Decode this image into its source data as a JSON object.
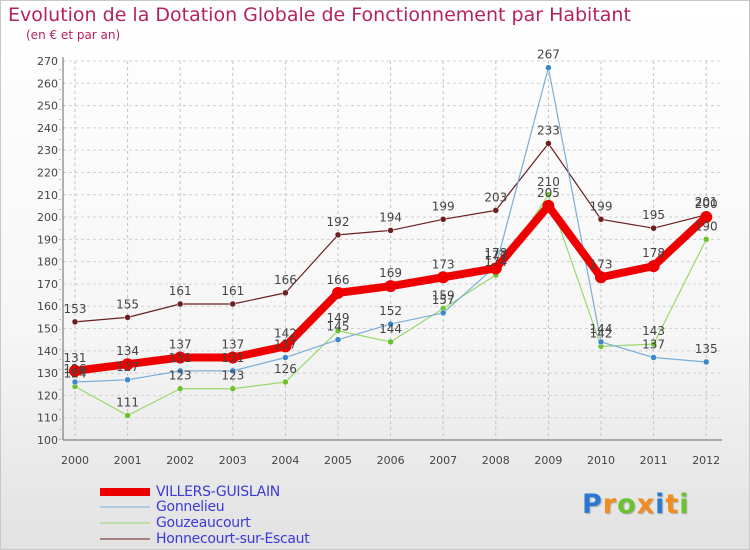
{
  "title": "Evolution de la Dotation Globale de Fonctionnement par Habitant",
  "subtitle": "(en € et par an)",
  "logo": {
    "letters": [
      "P",
      "r",
      "o",
      "x",
      "i",
      "t",
      "i"
    ],
    "colors": [
      "#2b78d2",
      "#f28c1e",
      "#6cc12e",
      "#f28c1e",
      "#2b78d2",
      "#f28c1e",
      "#6cc12e"
    ]
  },
  "chart_data": {
    "type": "line",
    "title": "Evolution de la Dotation Globale de Fonctionnement par Habitant",
    "subtitle": "(en € et par an)",
    "xlabel": "",
    "ylabel": "",
    "ylim": [
      100,
      270
    ],
    "yticks": [
      100,
      110,
      120,
      130,
      140,
      150,
      160,
      170,
      180,
      190,
      200,
      210,
      220,
      230,
      240,
      250,
      260,
      270
    ],
    "categories": [
      "2000",
      "2001",
      "2002",
      "2003",
      "2004",
      "2005",
      "2006",
      "2007",
      "2008",
      "2009",
      "2010",
      "2011",
      "2012"
    ],
    "legend_position": "bottom-left",
    "series": [
      {
        "name": "Honnecourt-sur-Escaut",
        "color": "#6b1f1f",
        "marker": "#6b1f1f",
        "width": 1.2,
        "radius": 3,
        "values": [
          153,
          155,
          161,
          161,
          166,
          192,
          194,
          199,
          203,
          233,
          199,
          195,
          201
        ],
        "labels": [
          "153",
          "155",
          "161",
          "161",
          "166",
          "192",
          "194",
          "199",
          "203",
          "233",
          "199",
          "195",
          "201"
        ]
      },
      {
        "name": "Gouzeaucourt",
        "color": "#98d86a",
        "marker": "#6cc12e",
        "width": 1.2,
        "radius": 3,
        "values": [
          124,
          111,
          123,
          123,
          126,
          149,
          144,
          159,
          174,
          210,
          142,
          143,
          190
        ],
        "labels": [
          "124",
          "111",
          "123",
          "123",
          "126",
          "149",
          "144",
          "159",
          "174",
          "210",
          "142",
          "143",
          "190"
        ]
      },
      {
        "name": "Gonnelieu",
        "color": "#7aaed8",
        "marker": "#3f88c8",
        "width": 1.2,
        "radius": 3,
        "values": [
          126,
          127,
          131,
          131,
          137,
          145,
          152,
          157,
          178,
          267,
          144,
          137,
          135
        ],
        "labels": [
          "126",
          "127",
          "131",
          "131",
          "137",
          "145",
          "152",
          "157",
          "178",
          "267",
          "144",
          "137",
          "135"
        ]
      },
      {
        "name": "VILLERS-GUISLAIN",
        "color": "#ee0000",
        "marker": "#ee0000",
        "width": 8,
        "radius": 6,
        "values": [
          131,
          134,
          137,
          137,
          142,
          166,
          169,
          173,
          177,
          205,
          173,
          178,
          200
        ],
        "labels": [
          "131",
          "134",
          "137",
          "137",
          "142",
          "166",
          "169",
          "173",
          "177",
          "205",
          "173",
          "178",
          "200"
        ]
      }
    ],
    "legend": [
      "VILLERS-GUISLAIN",
      "Gonnelieu",
      "Gouzeaucourt",
      "Honnecourt-sur-Escaut"
    ]
  }
}
